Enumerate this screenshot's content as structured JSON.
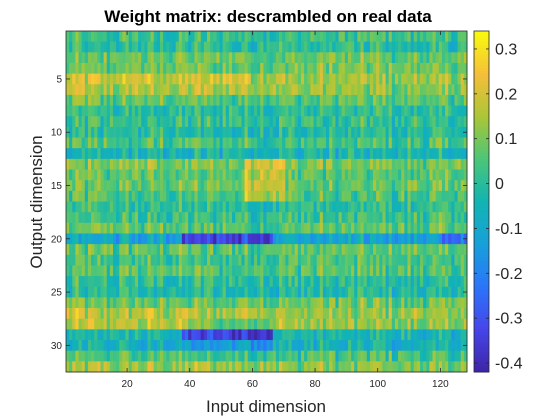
{
  "chart_data": {
    "type": "heatmap",
    "title": "Weight matrix: descrambled on real data",
    "xlabel": "Input dimension",
    "ylabel": "Output dimension",
    "n_cols": 128,
    "n_rows": 32,
    "xlim": [
      0.5,
      128.5
    ],
    "ylim": [
      0.5,
      32.5
    ],
    "y_reversed": true,
    "x_ticks": [
      20,
      40,
      60,
      80,
      100,
      120
    ],
    "y_ticks": [
      5,
      10,
      15,
      20,
      25,
      30
    ],
    "colormap": "parula",
    "color_range": [
      -0.42,
      0.34
    ],
    "colorbar_ticks": [
      0.3,
      0.2,
      0.1,
      0,
      -0.1,
      -0.2,
      -0.3,
      -0.4
    ],
    "colorbar_tick_labels": [
      "0.3",
      "0.2",
      "0.1",
      "0",
      "-0.1",
      "-0.2",
      "-0.3",
      "-0.4"
    ],
    "matrix_note": "Approximate reconstruction: per-row means with vertical-stripe texture; notable features: strong negative rows 20 and 29 for columns ~40-65, positive band rows 13-16 around columns 60-70, positive rows 5-6, 26-28, 32 over columns 1-70.",
    "row_means": [
      0.02,
      0.0,
      0.08,
      0.08,
      0.14,
      0.12,
      0.06,
      0.0,
      0.02,
      -0.02,
      0.04,
      -0.04,
      0.1,
      0.06,
      0.08,
      0.04,
      0.0,
      0.02,
      0.06,
      -0.12,
      0.06,
      0.04,
      0.06,
      0.0,
      -0.02,
      0.08,
      0.12,
      0.12,
      -0.04,
      -0.06,
      0.04,
      0.1
    ]
  }
}
